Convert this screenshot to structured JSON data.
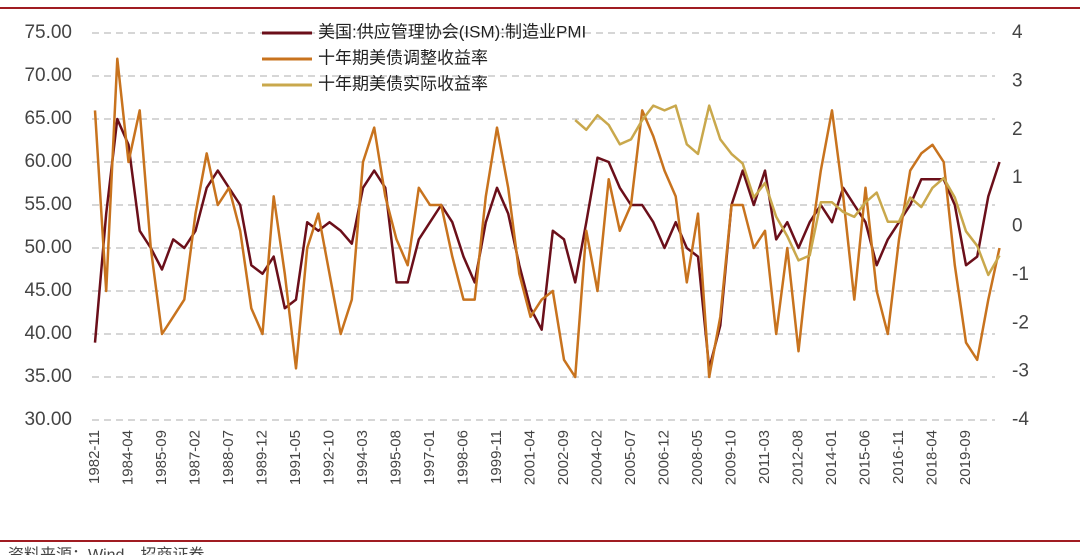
{
  "chart_data": {
    "type": "line",
    "categories": [
      "1982-11",
      null,
      null,
      "1984-04",
      null,
      null,
      "1985-09",
      null,
      null,
      "1987-02",
      null,
      null,
      "1988-07",
      null,
      null,
      "1989-12",
      null,
      null,
      "1991-05",
      null,
      null,
      "1992-10",
      null,
      null,
      "1994-03",
      null,
      null,
      "1995-08",
      null,
      null,
      "1997-01",
      null,
      null,
      "1998-06",
      null,
      null,
      "1999-11",
      null,
      null,
      "2001-04",
      null,
      null,
      "2002-09",
      null,
      null,
      "2004-02",
      null,
      null,
      "2005-07",
      null,
      null,
      "2006-12",
      null,
      null,
      "2008-05",
      null,
      null,
      "2009-10",
      null,
      null,
      "2011-03",
      null,
      null,
      "2012-08",
      null,
      null,
      "2014-01",
      null,
      null,
      "2015-06",
      null,
      null,
      "2016-11",
      null,
      null,
      "2018-04",
      null,
      null,
      "2019-09",
      null,
      null,
      null
    ],
    "series": [
      {
        "name": "美国:供应管理协会(ISM):制造业PMI",
        "color": "#6b0f1a",
        "values": [
          39,
          54,
          65,
          62,
          52,
          50,
          47.5,
          51,
          50,
          52,
          57,
          59,
          57,
          55,
          48,
          47,
          49,
          43,
          44,
          53,
          52,
          53,
          52,
          50.5,
          57,
          59,
          57,
          46,
          46,
          51,
          53,
          55,
          53,
          49,
          46,
          53,
          57,
          54,
          48,
          43,
          40.5,
          52,
          51,
          46,
          53,
          60.5,
          60,
          57,
          55,
          55,
          53,
          50,
          53,
          50,
          49,
          36,
          41,
          55,
          59,
          55,
          59,
          51,
          53,
          50,
          53,
          55,
          53,
          57,
          55,
          53,
          48,
          51,
          53,
          55,
          58,
          58,
          58,
          55,
          48,
          49,
          56,
          60
        ]
      },
      {
        "name": "十年期美债调整收益率",
        "color": "#c8731e",
        "values": [
          66,
          45,
          72,
          60,
          66,
          50,
          40,
          42,
          44,
          54,
          61,
          55,
          57,
          52,
          43,
          40,
          56,
          47,
          36,
          50,
          54,
          47,
          40,
          44,
          60,
          64,
          56,
          51,
          48,
          57,
          55,
          55,
          49,
          44,
          44,
          56,
          64,
          57,
          47,
          42,
          44,
          45,
          37,
          35,
          52,
          45,
          58,
          52,
          55,
          66,
          63,
          59,
          56,
          46,
          54,
          35,
          42,
          55,
          55,
          50,
          52,
          40,
          50,
          38,
          50,
          59,
          66,
          56,
          44,
          57,
          45,
          40,
          51,
          59,
          61,
          62,
          60,
          48,
          39,
          37,
          44,
          50
        ]
      },
      {
        "name": "十年期美债实际收益率",
        "color": "#c9a84c",
        "axis": "y2",
        "values": [
          null,
          null,
          null,
          null,
          null,
          null,
          null,
          null,
          null,
          null,
          null,
          null,
          null,
          null,
          null,
          null,
          null,
          null,
          null,
          null,
          null,
          null,
          null,
          null,
          null,
          null,
          null,
          null,
          null,
          null,
          null,
          null,
          null,
          null,
          null,
          null,
          null,
          null,
          null,
          null,
          null,
          null,
          null,
          2.2,
          2.0,
          2.3,
          2.1,
          1.7,
          1.8,
          2.2,
          2.5,
          2.4,
          2.5,
          1.7,
          1.5,
          2.5,
          1.8,
          1.5,
          1.3,
          0.6,
          0.9,
          0.2,
          -0.2,
          -0.7,
          -0.6,
          0.5,
          0.5,
          0.3,
          0.2,
          0.5,
          0.7,
          0.1,
          0.1,
          0.6,
          0.4,
          0.8,
          1.0,
          0.6,
          -0.1,
          -0.4,
          -1.0,
          -0.6
        ]
      }
    ],
    "ylim": [
      30,
      75
    ],
    "yticks": [
      {
        "value": 30,
        "label": "30.00"
      },
      {
        "value": 35,
        "label": "35.00"
      },
      {
        "value": 40,
        "label": "40.00"
      },
      {
        "value": 45,
        "label": "45.00"
      },
      {
        "value": 50,
        "label": "50.00"
      },
      {
        "value": 55,
        "label": "55.00"
      },
      {
        "value": 60,
        "label": "60.00"
      },
      {
        "value": 65,
        "label": "65.00"
      },
      {
        "value": 70,
        "label": "70.00"
      },
      {
        "value": 75,
        "label": "75.00"
      }
    ],
    "y2lim": [
      -4,
      4
    ],
    "y2ticks": [
      -4,
      -3,
      -2,
      -1,
      0,
      1,
      2,
      3,
      4
    ],
    "grid": true,
    "source": "资料来源：Wind，招商证券"
  }
}
